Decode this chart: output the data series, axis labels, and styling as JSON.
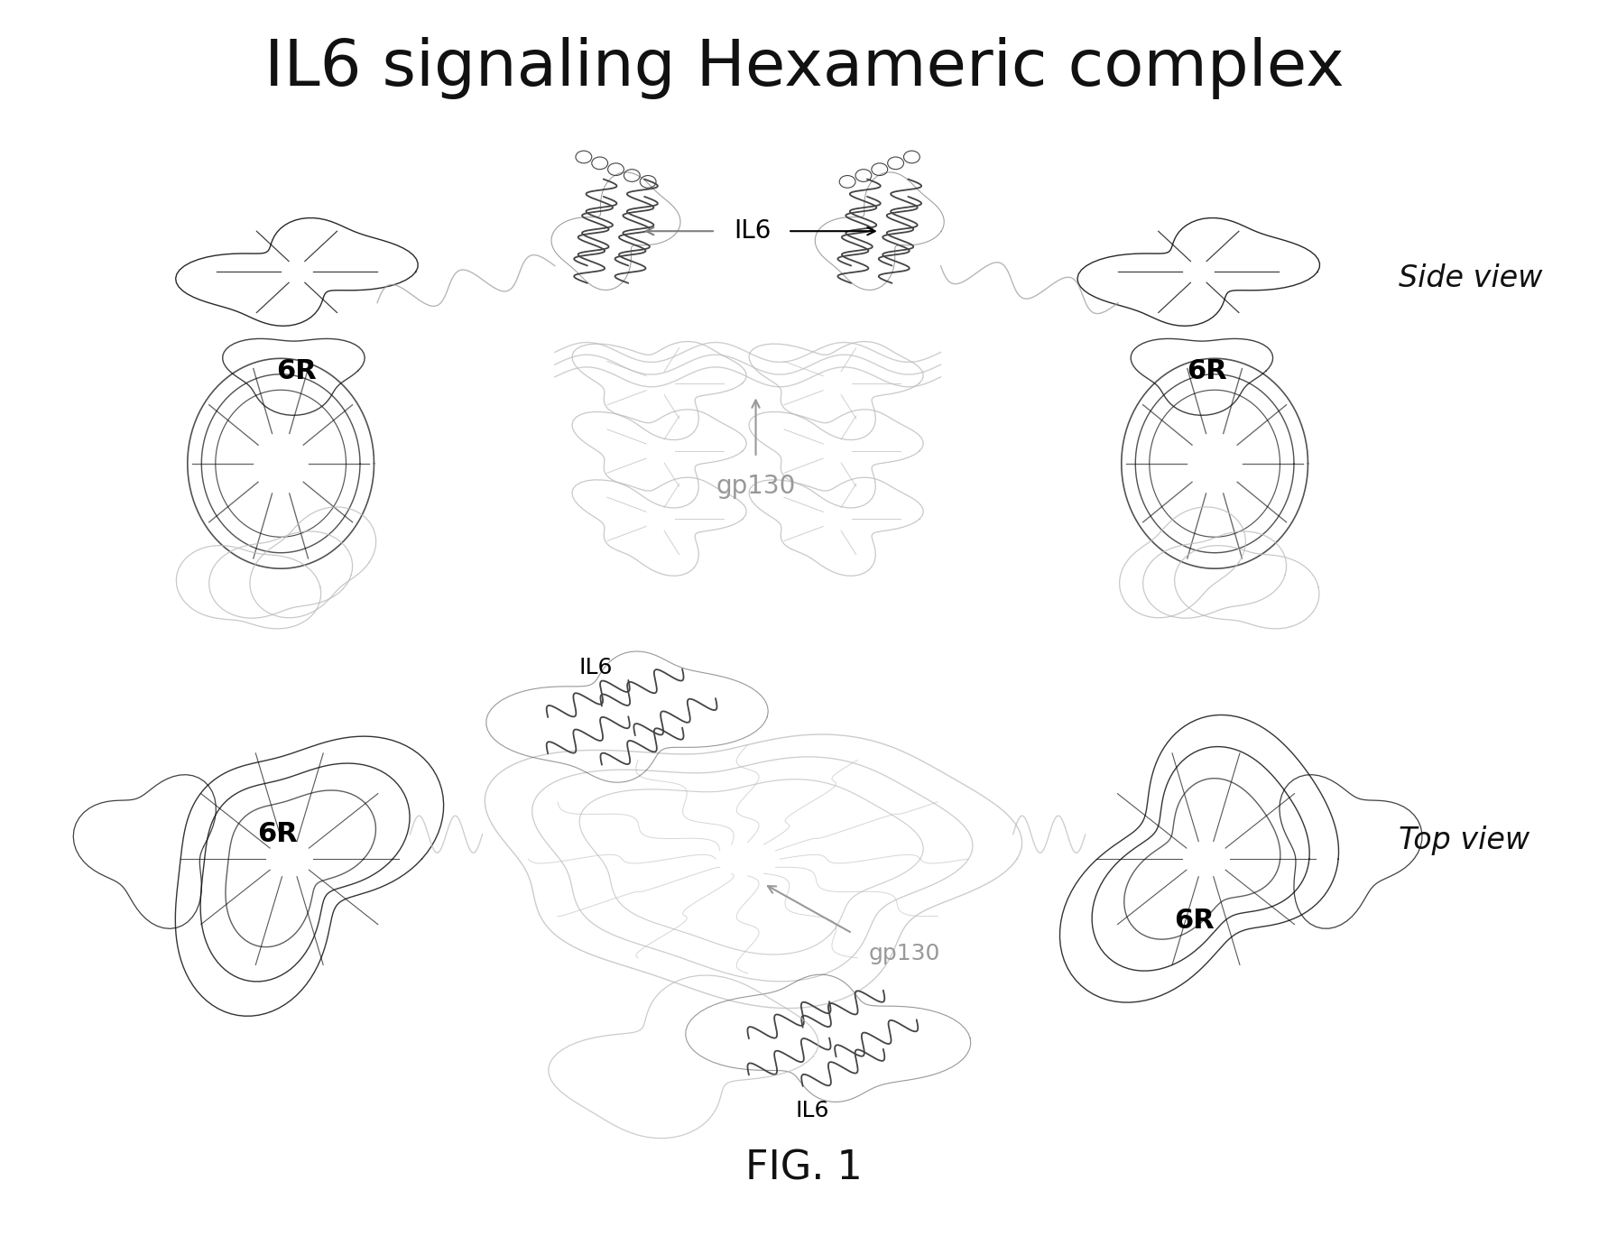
{
  "title": "IL6 signaling Hexameric complex",
  "title_fontsize": 52,
  "background_color": "#ffffff",
  "fig_caption": "FIG. 1",
  "fig_caption_fontsize": 32,
  "side_view_label": "Side view",
  "top_view_label": "Top view",
  "gray_color": "#999999",
  "lightgray_color": "#bbbbbb",
  "darkgray_color": "#444444",
  "black_color": "#111111"
}
